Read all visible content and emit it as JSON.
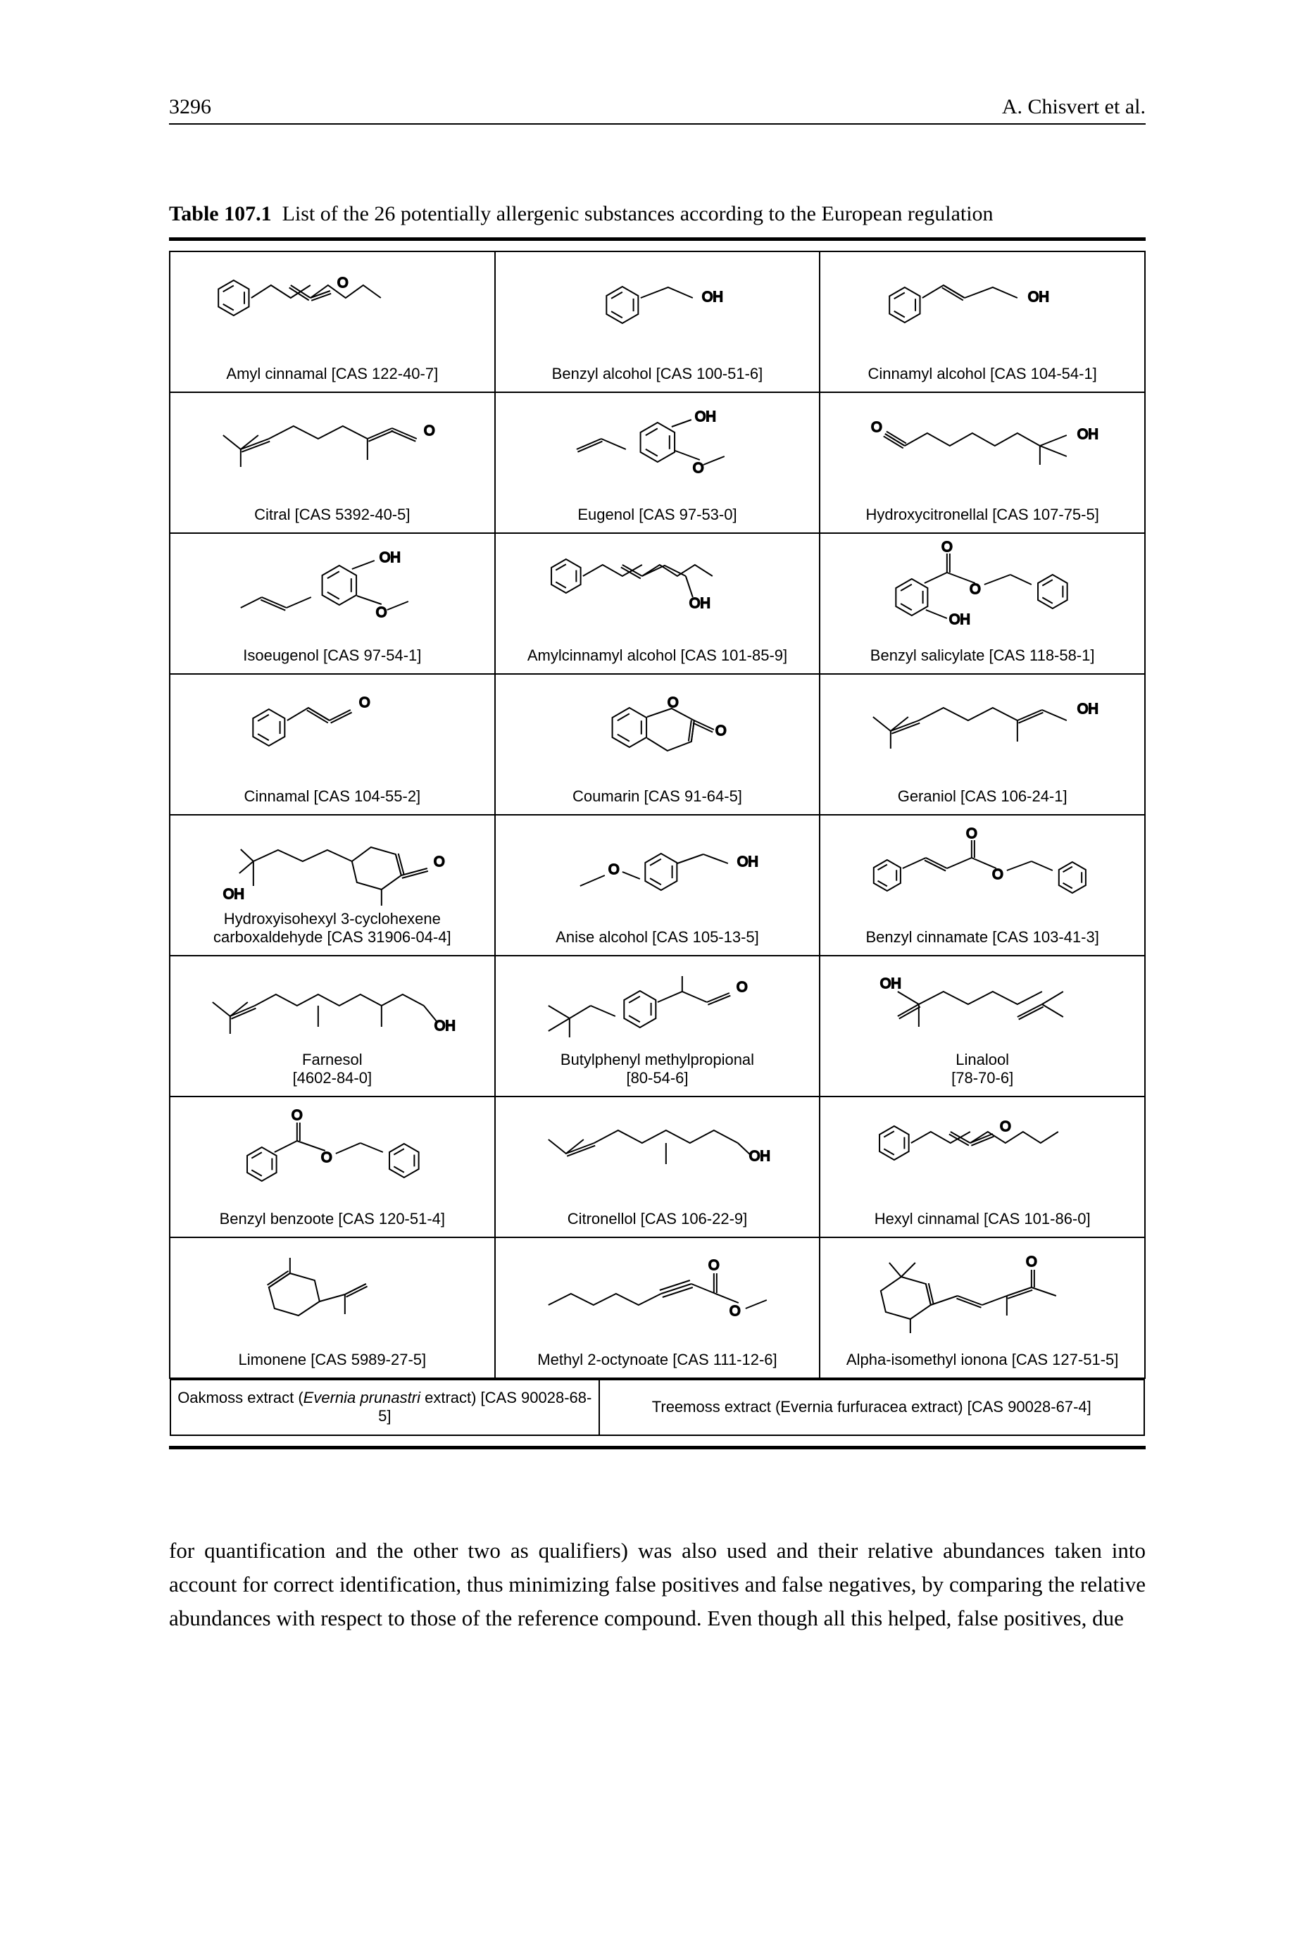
{
  "header": {
    "page_number": "3296",
    "authors": "A. Chisvert et al."
  },
  "table": {
    "caption_label": "Table 107.1",
    "caption_text": "List of the 26 potentially allergenic substances according to the European regulation",
    "rows": [
      [
        {
          "label": "Amyl cinnamal [CAS 122-40-7]"
        },
        {
          "label": "Benzyl alcohol [CAS 100-51-6]"
        },
        {
          "label": "Cinnamyl alcohol [CAS 104-54-1]"
        }
      ],
      [
        {
          "label": "Citral [CAS 5392-40-5]"
        },
        {
          "label": "Eugenol [CAS 97-53-0]"
        },
        {
          "label": "Hydroxycitronellal [CAS 107-75-5]"
        }
      ],
      [
        {
          "label": "Isoeugenol [CAS 97-54-1]"
        },
        {
          "label": "Amylcinnamyl alcohol [CAS 101-85-9]"
        },
        {
          "label": "Benzyl salicylate [CAS 118-58-1]"
        }
      ],
      [
        {
          "label": "Cinnamal [CAS 104-55-2]"
        },
        {
          "label": "Coumarin [CAS 91-64-5]"
        },
        {
          "label": "Geraniol [CAS 106-24-1]"
        }
      ],
      [
        {
          "label": "Hydroxyisohexyl 3-cyclohexene",
          "sub": "carboxaldehyde [CAS 31906-04-4]"
        },
        {
          "label": "Anise alcohol [CAS 105-13-5]"
        },
        {
          "label": "Benzyl cinnamate [CAS 103-41-3]"
        }
      ],
      [
        {
          "label": "Farnesol",
          "sub": "[4602-84-0]"
        },
        {
          "label": "Butylphenyl methylpropional",
          "sub": "[80-54-6]"
        },
        {
          "label": "Linalool",
          "sub": "[78-70-6]"
        }
      ],
      [
        {
          "label": "Benzyl benzoote [CAS 120-51-4]"
        },
        {
          "label": "Citronellol [CAS 106-22-9]"
        },
        {
          "label": "Hexyl cinnamal [CAS 101-86-0]"
        }
      ],
      [
        {
          "label": "Limonene [CAS 5989-27-5]"
        },
        {
          "label": "Methyl 2-octynoate [CAS 111-12-6]"
        },
        {
          "label": "Alpha-isomethyl ionona [CAS 127-51-5]"
        }
      ]
    ],
    "bottom_row": [
      {
        "label_pre": "Oakmoss extract (",
        "italic": "Evernia prunastri",
        "label_post": " extract) [CAS 90028-68-5]"
      },
      {
        "label": "Treemoss extract (Evernia furfuracea extract) [CAS 90028-67-4]"
      }
    ]
  },
  "body": {
    "paragraph": "for quantification and the other two as qualifiers) was also used and their relative abundances taken into account for correct identification, thus minimizing false positives and false negatives, by comparing the relative abundances with respect to those of the reference compound. Even though all this helped, false positives, due"
  },
  "style": {
    "stroke": "#000000",
    "stroke_width": 2,
    "label_font": "Arial, Helvetica, sans-serif",
    "chem_text_fontsize": 20
  }
}
